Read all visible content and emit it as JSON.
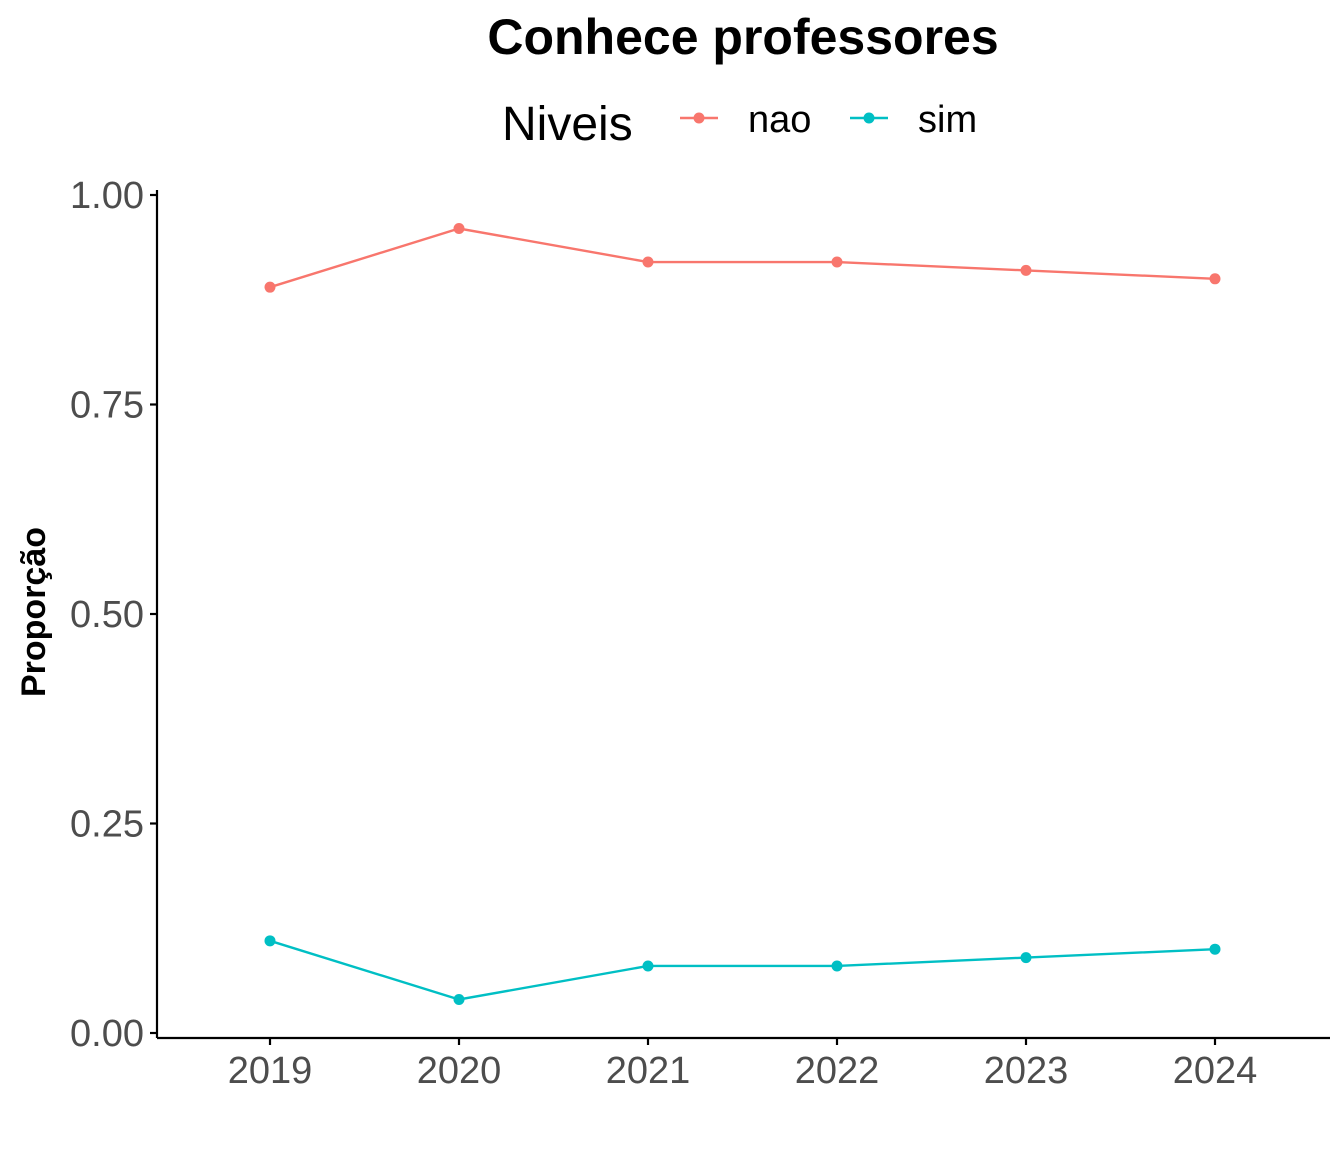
{
  "chart_data": {
    "type": "line",
    "title": "Conhece professores",
    "xlabel": "",
    "ylabel": "Proporção",
    "legend_title": "Niveis",
    "legend_position": "top",
    "grid": false,
    "x": [
      "2019",
      "2020",
      "2021",
      "2022",
      "2023",
      "2024"
    ],
    "ylim": [
      0,
      1
    ],
    "yticks": [
      "0.00",
      "0.25",
      "0.50",
      "0.75",
      "1.00"
    ],
    "series": [
      {
        "name": "nao",
        "color": "#f8766d",
        "values": [
          0.89,
          0.96,
          0.92,
          0.92,
          0.91,
          0.9
        ]
      },
      {
        "name": "sim",
        "color": "#00bfc4",
        "values": [
          0.11,
          0.04,
          0.08,
          0.08,
          0.09,
          0.1
        ]
      }
    ]
  }
}
